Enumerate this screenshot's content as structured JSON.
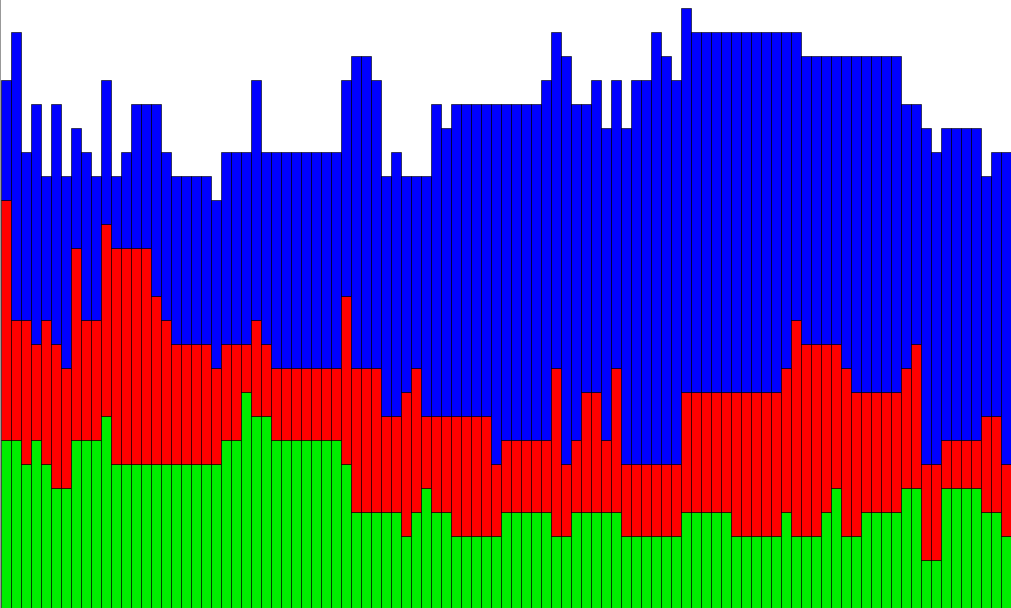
{
  "chart_data": {
    "type": "bar",
    "stacked": true,
    "title": "",
    "xlabel": "",
    "ylabel": "",
    "ylim": [
      0,
      608
    ],
    "grid": false,
    "legend": "none",
    "series": [
      {
        "color": "#00ee00",
        "values": [
          168,
          168,
          144,
          168,
          144,
          120,
          120,
          168,
          168,
          168,
          192,
          144,
          144,
          144,
          144,
          144,
          144,
          144,
          144,
          144,
          144,
          144,
          168,
          168,
          216,
          192,
          192,
          168,
          168,
          168,
          168,
          168,
          168,
          168,
          144,
          96,
          96,
          96,
          96,
          96,
          72,
          96,
          120,
          96,
          96,
          72,
          72,
          72,
          72,
          72,
          96,
          96,
          96,
          96,
          96,
          72,
          72,
          96,
          96,
          96,
          96,
          96,
          72,
          72,
          72,
          72,
          72,
          72,
          96,
          96,
          96,
          96,
          96,
          72,
          72,
          72,
          72,
          72,
          96,
          72,
          72,
          72,
          96,
          120,
          72,
          72,
          96,
          96,
          96,
          96,
          120,
          120,
          48,
          48,
          120,
          120,
          120,
          120,
          96,
          96,
          72
        ]
      },
      {
        "color": "#ff0000",
        "values": [
          240,
          120,
          144,
          96,
          144,
          144,
          120,
          192,
          120,
          120,
          192,
          216,
          216,
          216,
          216,
          168,
          144,
          120,
          120,
          120,
          120,
          96,
          96,
          96,
          48,
          96,
          72,
          72,
          72,
          72,
          72,
          72,
          72,
          72,
          168,
          144,
          144,
          144,
          96,
          96,
          144,
          144,
          72,
          96,
          96,
          120,
          120,
          120,
          120,
          72,
          72,
          72,
          72,
          72,
          72,
          168,
          72,
          72,
          120,
          120,
          72,
          144,
          72,
          72,
          72,
          72,
          72,
          72,
          120,
          120,
          120,
          120,
          120,
          144,
          144,
          144,
          144,
          144,
          144,
          216,
          192,
          192,
          168,
          144,
          168,
          144,
          120,
          120,
          120,
          120,
          120,
          144,
          96,
          96,
          48,
          48,
          48,
          48,
          96,
          96,
          72
        ]
      },
      {
        "color": "#0000ff",
        "values": [
          120,
          288,
          168,
          240,
          144,
          240,
          192,
          120,
          168,
          144,
          144,
          72,
          96,
          144,
          144,
          192,
          168,
          168,
          168,
          168,
          168,
          168,
          192,
          192,
          192,
          240,
          192,
          216,
          216,
          216,
          216,
          216,
          216,
          216,
          216,
          312,
          312,
          288,
          240,
          264,
          216,
          192,
          240,
          312,
          288,
          312,
          312,
          312,
          312,
          360,
          336,
          336,
          336,
          336,
          360,
          336,
          408,
          336,
          288,
          312,
          312,
          288,
          336,
          384,
          384,
          432,
          408,
          384,
          384,
          360,
          360,
          360,
          360,
          360,
          360,
          360,
          360,
          360,
          336,
          288,
          288,
          288,
          288,
          288,
          312,
          336,
          336,
          336,
          336,
          336,
          264,
          240,
          336,
          312,
          312,
          312,
          312,
          312,
          240,
          264,
          312
        ]
      }
    ]
  }
}
